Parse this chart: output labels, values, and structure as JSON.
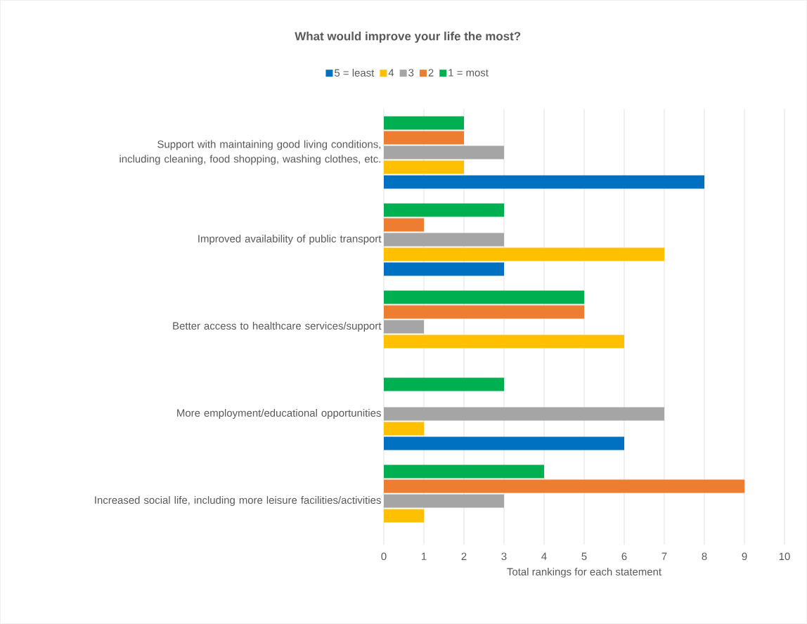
{
  "chart_data": {
    "type": "bar",
    "orientation": "horizontal",
    "title": "What would improve your life the most?",
    "xlabel": "Total rankings for each statement",
    "categories": [
      "Support with maintaining good living conditions, including cleaning, food shopping, washing clothes, etc.",
      "Improved availability of public transport",
      "Better access to healthcare services/support",
      "More employment/educational opportunities",
      "Increased social life, including more leisure facilities/activities"
    ],
    "series": [
      {
        "name": "5 = least",
        "color": "#0070c0",
        "values": [
          8,
          3,
          null,
          6,
          null
        ]
      },
      {
        "name": "4",
        "color": "#ffc000",
        "values": [
          2,
          7,
          6,
          1,
          1
        ]
      },
      {
        "name": "3",
        "color": "#a5a5a5",
        "values": [
          3,
          3,
          1,
          7,
          3
        ]
      },
      {
        "name": "2",
        "color": "#ed7d31",
        "values": [
          2,
          1,
          5,
          null,
          9
        ]
      },
      {
        "name": "1 = most",
        "color": "#00b050",
        "values": [
          2,
          3,
          5,
          3,
          4
        ]
      }
    ],
    "xlim": [
      0,
      10
    ],
    "xticks": [
      0,
      1,
      2,
      3,
      4,
      5,
      6,
      7,
      8,
      9,
      10
    ],
    "grid": "x",
    "legend": "top"
  }
}
